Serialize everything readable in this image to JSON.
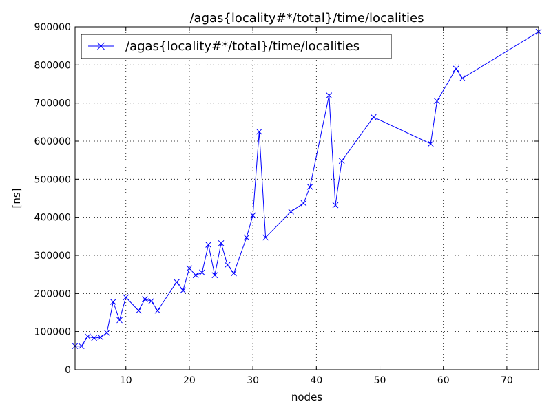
{
  "chart_data": {
    "type": "line",
    "title": "/agas{locality#*/total}/time/localities",
    "xlabel": "nodes",
    "ylabel": "[ns]",
    "xlim": [
      2,
      75
    ],
    "ylim": [
      0,
      900000
    ],
    "x_ticks": [
      10,
      20,
      30,
      40,
      50,
      60,
      70
    ],
    "y_ticks": [
      0,
      100000,
      200000,
      300000,
      400000,
      500000,
      600000,
      700000,
      800000,
      900000
    ],
    "x_tick_labels": [
      "10",
      "20",
      "30",
      "40",
      "50",
      "60",
      "70"
    ],
    "y_tick_labels": [
      "0",
      "100000",
      "200000",
      "300000",
      "400000",
      "500000",
      "600000",
      "700000",
      "800000",
      "900000"
    ],
    "grid": true,
    "grid_style": "dotted",
    "legend_position": "top-left",
    "series": [
      {
        "name": "/agas{locality#*/total}/time/localities",
        "color": "#0000ff",
        "marker": "x",
        "x": [
          2,
          3,
          4,
          5,
          6,
          7,
          8,
          9,
          10,
          12,
          13,
          14,
          15,
          18,
          19,
          20,
          21,
          22,
          23,
          24,
          25,
          26,
          27,
          29,
          30,
          31,
          32,
          36,
          38,
          39,
          42,
          43,
          44,
          49,
          58,
          59,
          62,
          63,
          75
        ],
        "y": [
          62000,
          62000,
          87000,
          83000,
          85000,
          97000,
          178000,
          130000,
          190000,
          155000,
          185000,
          180000,
          155000,
          230000,
          208000,
          266000,
          248000,
          255000,
          328000,
          248000,
          332000,
          275000,
          253000,
          347000,
          405000,
          625000,
          347000,
          415000,
          437000,
          480000,
          720000,
          432000,
          548000,
          663000,
          593000,
          705000,
          790000,
          765000,
          887000
        ]
      }
    ]
  }
}
